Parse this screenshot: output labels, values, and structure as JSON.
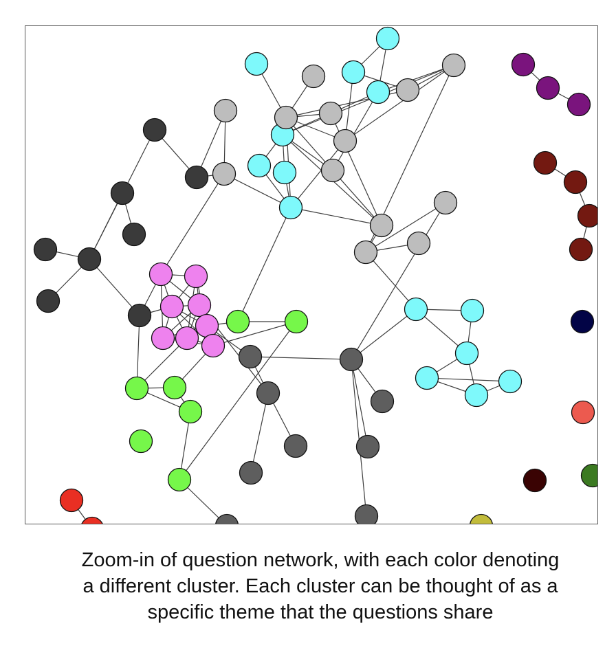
{
  "network": {
    "clusters": {
      "charcoal": "#3a3a3a",
      "grey": "#5e5e5e",
      "silver": "#bdbdbd",
      "cyan": "#7ef9fb",
      "pink": "#ee82ee",
      "green": "#76f74a",
      "purple": "#7a147d",
      "maroon": "#731911",
      "navy": "#020446",
      "salmon": "#ec5a4f",
      "forest": "#3b7a21",
      "darkbrown": "#3a0303",
      "red": "#e92f23",
      "olive": "#c2bc3b"
    },
    "nodes": [
      {
        "id": "c1",
        "cluster": "cyan"
      },
      {
        "id": "c2",
        "cluster": "cyan"
      },
      {
        "id": "c3",
        "cluster": "cyan"
      },
      {
        "id": "c4",
        "cluster": "cyan"
      },
      {
        "id": "c5",
        "cluster": "cyan"
      },
      {
        "id": "c6",
        "cluster": "cyan"
      },
      {
        "id": "c7",
        "cluster": "cyan"
      },
      {
        "id": "c8",
        "cluster": "cyan"
      },
      {
        "id": "c9",
        "cluster": "cyan"
      },
      {
        "id": "c10",
        "cluster": "cyan"
      },
      {
        "id": "c11",
        "cluster": "cyan"
      },
      {
        "id": "c12",
        "cluster": "cyan"
      },
      {
        "id": "c13",
        "cluster": "cyan"
      },
      {
        "id": "c14",
        "cluster": "cyan"
      },
      {
        "id": "s1",
        "cluster": "silver"
      },
      {
        "id": "s2",
        "cluster": "silver"
      },
      {
        "id": "s3",
        "cluster": "silver"
      },
      {
        "id": "s4",
        "cluster": "silver"
      },
      {
        "id": "s5",
        "cluster": "silver"
      },
      {
        "id": "s6",
        "cluster": "silver"
      },
      {
        "id": "s7",
        "cluster": "silver"
      },
      {
        "id": "s8",
        "cluster": "silver"
      },
      {
        "id": "s9",
        "cluster": "silver"
      },
      {
        "id": "s10",
        "cluster": "silver"
      },
      {
        "id": "s11",
        "cluster": "silver"
      },
      {
        "id": "s12",
        "cluster": "silver"
      },
      {
        "id": "s13",
        "cluster": "silver"
      },
      {
        "id": "k1",
        "cluster": "charcoal"
      },
      {
        "id": "k2",
        "cluster": "charcoal"
      },
      {
        "id": "k3",
        "cluster": "charcoal"
      },
      {
        "id": "k4",
        "cluster": "charcoal"
      },
      {
        "id": "k5",
        "cluster": "charcoal"
      },
      {
        "id": "k6",
        "cluster": "charcoal"
      },
      {
        "id": "k7",
        "cluster": "charcoal"
      },
      {
        "id": "k8",
        "cluster": "charcoal"
      },
      {
        "id": "p1",
        "cluster": "pink"
      },
      {
        "id": "p2",
        "cluster": "pink"
      },
      {
        "id": "p3",
        "cluster": "pink"
      },
      {
        "id": "p4",
        "cluster": "pink"
      },
      {
        "id": "p5",
        "cluster": "pink"
      },
      {
        "id": "p6",
        "cluster": "pink"
      },
      {
        "id": "p7",
        "cluster": "pink"
      },
      {
        "id": "p8",
        "cluster": "pink"
      },
      {
        "id": "g1",
        "cluster": "green"
      },
      {
        "id": "g2",
        "cluster": "green"
      },
      {
        "id": "g3",
        "cluster": "green"
      },
      {
        "id": "g4",
        "cluster": "green"
      },
      {
        "id": "g5",
        "cluster": "green"
      },
      {
        "id": "g6",
        "cluster": "green"
      },
      {
        "id": "g7",
        "cluster": "green"
      },
      {
        "id": "d1",
        "cluster": "grey"
      },
      {
        "id": "d2",
        "cluster": "grey"
      },
      {
        "id": "d3",
        "cluster": "grey"
      },
      {
        "id": "d4",
        "cluster": "grey"
      },
      {
        "id": "d5",
        "cluster": "grey"
      },
      {
        "id": "d6",
        "cluster": "grey"
      },
      {
        "id": "d7",
        "cluster": "grey"
      },
      {
        "id": "d8",
        "cluster": "grey"
      },
      {
        "id": "d9",
        "cluster": "grey"
      },
      {
        "id": "u1",
        "cluster": "purple"
      },
      {
        "id": "u2",
        "cluster": "purple"
      },
      {
        "id": "u3",
        "cluster": "purple"
      },
      {
        "id": "m1",
        "cluster": "maroon"
      },
      {
        "id": "m2",
        "cluster": "maroon"
      },
      {
        "id": "m3",
        "cluster": "maroon"
      },
      {
        "id": "m4",
        "cluster": "maroon"
      },
      {
        "id": "n1",
        "cluster": "navy"
      },
      {
        "id": "o1",
        "cluster": "salmon"
      },
      {
        "id": "f1",
        "cluster": "forest"
      },
      {
        "id": "b1",
        "cluster": "darkbrown"
      },
      {
        "id": "r1",
        "cluster": "red"
      },
      {
        "id": "r2",
        "cluster": "red"
      },
      {
        "id": "y1",
        "cluster": "olive"
      }
    ],
    "edges": [
      [
        "c1",
        "s3"
      ],
      [
        "c2",
        "c3"
      ],
      [
        "c2",
        "c4"
      ],
      [
        "c3",
        "s6"
      ],
      [
        "c3",
        "s8"
      ],
      [
        "c4",
        "s5"
      ],
      [
        "c4",
        "s7"
      ],
      [
        "c4",
        "s9"
      ],
      [
        "s2",
        "s3"
      ],
      [
        "s3",
        "s5"
      ],
      [
        "s3",
        "s6"
      ],
      [
        "s3",
        "c5"
      ],
      [
        "s3",
        "s8"
      ],
      [
        "s3",
        "s9"
      ],
      [
        "s3",
        "c8"
      ],
      [
        "s6",
        "s7"
      ],
      [
        "s5",
        "c5"
      ],
      [
        "s5",
        "s10"
      ],
      [
        "c5",
        "s9"
      ],
      [
        "c5",
        "c6"
      ],
      [
        "c5",
        "c7"
      ],
      [
        "c5",
        "s10"
      ],
      [
        "c5",
        "s7"
      ],
      [
        "c7",
        "c8"
      ],
      [
        "c6",
        "c8"
      ],
      [
        "s8",
        "c8"
      ],
      [
        "s8",
        "s7"
      ],
      [
        "s9",
        "s10"
      ],
      [
        "s7",
        "s11"
      ],
      [
        "s12",
        "s11"
      ],
      [
        "s13",
        "s11"
      ],
      [
        "s11",
        "c9"
      ],
      [
        "s10",
        "s11"
      ],
      [
        "s10",
        "c8"
      ],
      [
        "s4",
        "s1"
      ],
      [
        "s4",
        "c8"
      ],
      [
        "s1",
        "k1"
      ],
      [
        "k1",
        "k2"
      ],
      [
        "k1",
        "s4"
      ],
      [
        "k2",
        "k3"
      ],
      [
        "k3",
        "k4"
      ],
      [
        "k3",
        "k5"
      ],
      [
        "k3",
        "k6"
      ],
      [
        "k4",
        "k7"
      ],
      [
        "k3",
        "k8"
      ],
      [
        "k8",
        "p2"
      ],
      [
        "k8",
        "g1"
      ],
      [
        "k8",
        "p3"
      ],
      [
        "p1",
        "p2"
      ],
      [
        "p1",
        "p3"
      ],
      [
        "p1",
        "p4"
      ],
      [
        "p1",
        "p5"
      ],
      [
        "p2",
        "p4"
      ],
      [
        "p2",
        "p3"
      ],
      [
        "p3",
        "p4"
      ],
      [
        "p3",
        "p5"
      ],
      [
        "p3",
        "p6"
      ],
      [
        "p3",
        "p7"
      ],
      [
        "p3",
        "p8"
      ],
      [
        "p4",
        "p5"
      ],
      [
        "p4",
        "p6"
      ],
      [
        "p4",
        "p7"
      ],
      [
        "p4",
        "p8"
      ],
      [
        "p5",
        "p6"
      ],
      [
        "p5",
        "p7"
      ],
      [
        "p5",
        "p8"
      ],
      [
        "p6",
        "p7"
      ],
      [
        "p7",
        "p8"
      ],
      [
        "p6",
        "p8"
      ],
      [
        "p2",
        "p6"
      ],
      [
        "p1",
        "p7"
      ],
      [
        "p5",
        "g3"
      ],
      [
        "p8",
        "g2"
      ],
      [
        "p8",
        "g4"
      ],
      [
        "p7",
        "g1"
      ],
      [
        "g3",
        "g4"
      ],
      [
        "g3",
        "c8"
      ],
      [
        "p5",
        "d1"
      ],
      [
        "p4",
        "d2"
      ],
      [
        "d1",
        "d2"
      ],
      [
        "d1",
        "d3"
      ],
      [
        "d2",
        "d4"
      ],
      [
        "d2",
        "d5"
      ],
      [
        "g1",
        "g2"
      ],
      [
        "g1",
        "g5"
      ],
      [
        "g2",
        "g5"
      ],
      [
        "g5",
        "g6"
      ],
      [
        "g4",
        "g6"
      ],
      [
        "g6",
        "d6"
      ],
      [
        "s4",
        "p2"
      ],
      [
        "d3",
        "d7"
      ],
      [
        "d3",
        "d8"
      ],
      [
        "d3",
        "d9"
      ],
      [
        "d3",
        "s13"
      ],
      [
        "d3",
        "c9"
      ],
      [
        "c9",
        "c10"
      ],
      [
        "c9",
        "c11"
      ],
      [
        "c11",
        "c12"
      ],
      [
        "c11",
        "c13"
      ],
      [
        "c10",
        "c11"
      ],
      [
        "c12",
        "c13"
      ],
      [
        "c12",
        "c14"
      ],
      [
        "c13",
        "c14"
      ],
      [
        "u1",
        "u2"
      ],
      [
        "u2",
        "u3"
      ],
      [
        "m1",
        "m2"
      ],
      [
        "m2",
        "m3"
      ],
      [
        "m3",
        "m4"
      ],
      [
        "r1",
        "r2"
      ]
    ]
  },
  "caption": {
    "line1": "Zoom-in of question network, with each color denoting",
    "line2": "a different cluster. Each cluster can be thought of as a",
    "line3": "specific theme that the questions share"
  }
}
